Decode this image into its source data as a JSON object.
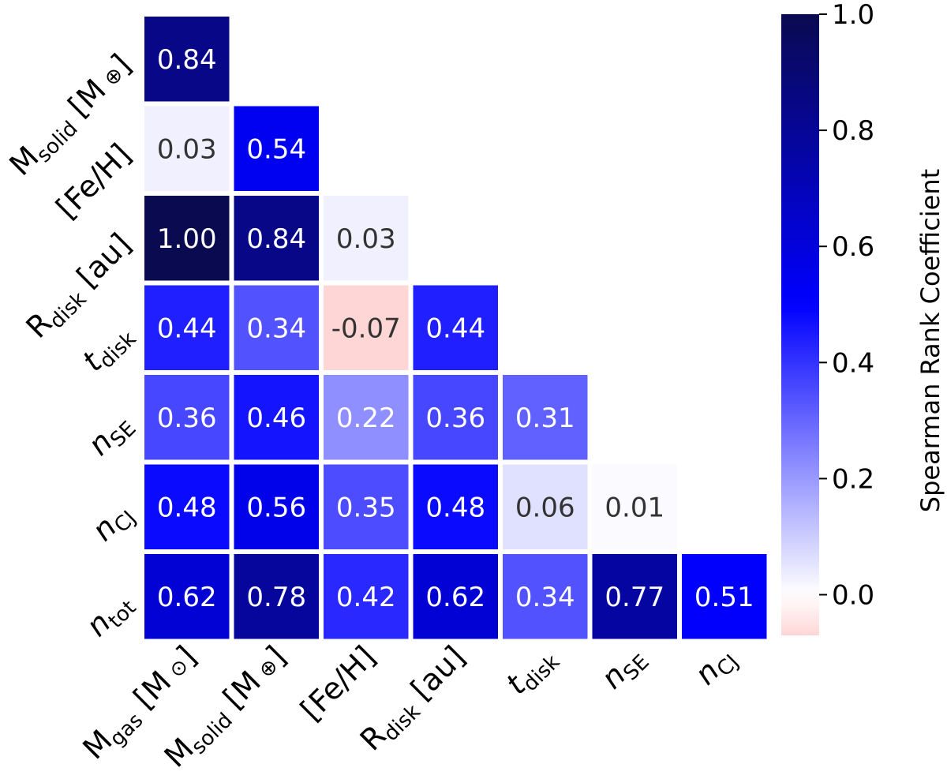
{
  "chart_data": {
    "type": "heatmap",
    "row_labels": [
      {
        "base": "M",
        "sub": "solid",
        "unit": "[M",
        "sym": "⊕",
        "close": "]"
      },
      {
        "base": "[Fe/H]",
        "sub": "",
        "unit": "",
        "sym": "",
        "close": ""
      },
      {
        "base": "R",
        "sub": "disk",
        "unit": "[au]",
        "sym": "",
        "close": ""
      },
      {
        "base": "t",
        "sub": "disk",
        "unit": "",
        "sym": "",
        "close": "",
        "italic": true
      },
      {
        "base": "n",
        "sub": "SE",
        "unit": "",
        "sym": "",
        "close": "",
        "italic": true
      },
      {
        "base": "n",
        "sub": "CJ",
        "unit": "",
        "sym": "",
        "close": "",
        "italic": true
      },
      {
        "base": "n",
        "sub": "tot",
        "unit": "",
        "sym": "",
        "close": "",
        "italic": true
      }
    ],
    "col_labels": [
      {
        "base": "M",
        "sub": "gas",
        "unit": "[M",
        "sym": "⊙",
        "close": "]"
      },
      {
        "base": "M",
        "sub": "solid",
        "unit": "[M",
        "sym": "⊕",
        "close": "]"
      },
      {
        "base": "[Fe/H]",
        "sub": "",
        "unit": "",
        "sym": "",
        "close": ""
      },
      {
        "base": "R",
        "sub": "disk",
        "unit": "[au]",
        "sym": "",
        "close": ""
      },
      {
        "base": "t",
        "sub": "disk",
        "unit": "",
        "sym": "",
        "close": "",
        "italic": true
      },
      {
        "base": "n",
        "sub": "SE",
        "unit": "",
        "sym": "",
        "close": "",
        "italic": true
      },
      {
        "base": "n",
        "sub": "CJ",
        "unit": "",
        "sym": "",
        "close": "",
        "italic": true
      }
    ],
    "values": [
      [
        0.84,
        null,
        null,
        null,
        null,
        null,
        null
      ],
      [
        0.03,
        0.54,
        null,
        null,
        null,
        null,
        null
      ],
      [
        1.0,
        0.84,
        0.03,
        null,
        null,
        null,
        null
      ],
      [
        0.44,
        0.34,
        -0.07,
        0.44,
        null,
        null,
        null
      ],
      [
        0.36,
        0.46,
        0.22,
        0.36,
        0.31,
        null,
        null
      ],
      [
        0.48,
        0.56,
        0.35,
        0.48,
        0.06,
        0.01,
        null
      ],
      [
        0.62,
        0.78,
        0.42,
        0.62,
        0.34,
        0.77,
        0.51
      ]
    ],
    "value_format": "2-decimals",
    "colorbar": {
      "label": "Spearman Rank Coefficient",
      "range": [
        -0.07,
        1.0
      ],
      "ticks": [
        0.0,
        0.2,
        0.4,
        0.6,
        0.8,
        1.0
      ],
      "tick_labels": [
        "0.0",
        "0.2",
        "0.4",
        "0.6",
        "0.8",
        "1.0"
      ],
      "colormap": "bwr (white at 0, blue positive, red negative)"
    },
    "colors": {
      "high": "#0a0a50",
      "blue": "#0000ff",
      "zero": "#ffffff",
      "negative": "#ffd6d6",
      "light_text": "#ffffff",
      "dark_text": "#333333"
    }
  }
}
